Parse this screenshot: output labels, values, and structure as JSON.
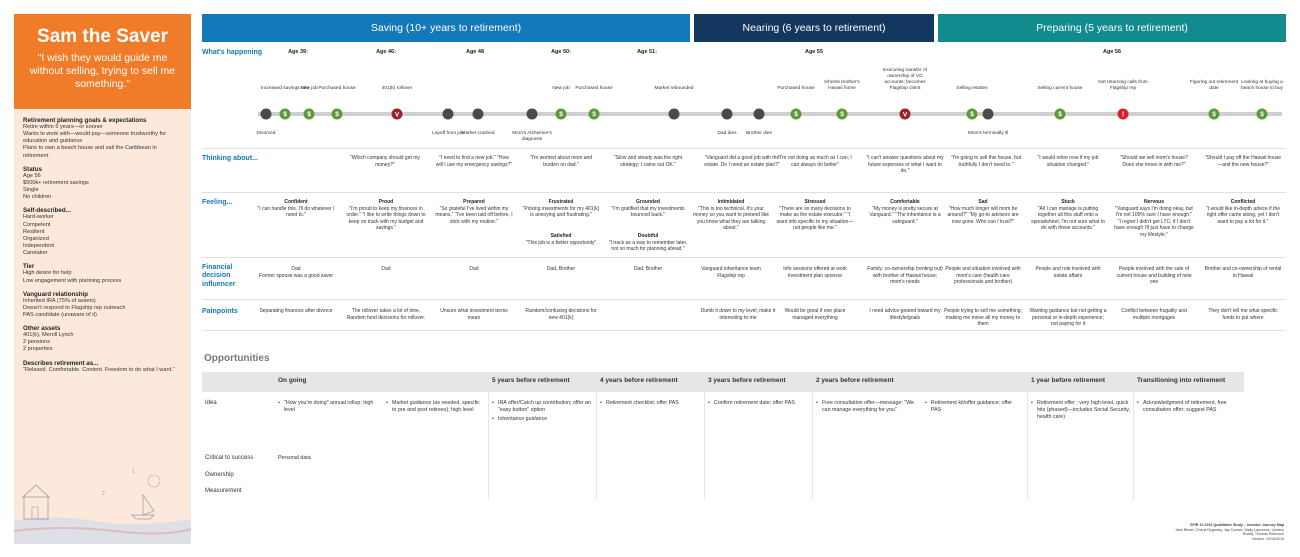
{
  "persona": {
    "name": "Sam the Saver",
    "quote": "\"I wish they would guide me without selling, trying to sell me something.\"",
    "sections": [
      {
        "title": "Retirement planning goals & expectations",
        "lines": [
          "Retire within 5 years—or sooner",
          "Wants to work with—would pay—someone trustworthy for education and guidance",
          "Plans to own a beach house and sail the Caribbean in retirement"
        ]
      },
      {
        "title": "Status",
        "lines": [
          "Age 56",
          "$500k+ retirement savings",
          "Single",
          "No children"
        ]
      },
      {
        "title": "Self-described...",
        "lines": [
          "Hard-worker",
          "Competent",
          "Resilient",
          "Organized",
          "Independent",
          "Caretaker"
        ]
      },
      {
        "title": "Tier",
        "lines": [
          "High desire for help",
          "Low engagement with planning process"
        ]
      },
      {
        "title": "Vanguard relationship",
        "lines": [
          "Inherited IRA (75% of assets)",
          "Doesn't respond to Flagship rep outreach",
          "PAS candidate (unaware of it)"
        ]
      },
      {
        "title": "Other assets",
        "lines": [
          "401(k), Merrill Lynch",
          "2 pensions",
          "2 properties"
        ]
      },
      {
        "title": "Describes retirement as...",
        "lines": [
          "\"Relaxed. Comfortable. Content. Freedom to do what I want.\""
        ]
      }
    ]
  },
  "phases": {
    "saving": "Saving (10+ years to retirement)",
    "nearing": "Nearing (6 years to retirement)",
    "preparing": "Preparing (5 years to retirement)"
  },
  "row_labels": {
    "happening": "What's happening",
    "thinking": "Thinking about...",
    "feeling": "Feeling...",
    "influencer": "Financial decision influencer",
    "painpoints": "Painpoints"
  },
  "ages": [
    {
      "label": "Age 39:"
    },
    {
      "label": "Age 46:"
    },
    {
      "label": "Age 48"
    },
    {
      "label": "Age 50:"
    },
    {
      "label": "Age 51:"
    },
    {
      "label": "Age 55"
    },
    {
      "label": "Age 56"
    }
  ],
  "events_top": [
    "Increased savings rate",
    "New job",
    "Purchased house",
    "401(k) rollover",
    "New job",
    "Purchased house",
    "Market rebounded",
    "Purchased house",
    "Inherits brother's Hawaii home",
    "Executing transfer of ownership of VG accounts; becomes Flagship client",
    "Selling estates",
    "Selling current house",
    "Not returning calls from Flagship rep",
    "Figuring out retirement date",
    "Looking at buying a beach house to buy"
  ],
  "events_bottom": [
    "Divorced",
    "Layoff from job",
    "Market crashed",
    "Mom's Alzheimer's diagnosis",
    "Dad dies",
    "Brother dies",
    "Mom's terminally ill"
  ],
  "thinking": [
    "\"Which company should get my money?\"",
    "\"I need to find a new job.\" \"How will I use my emergency savings?\"",
    "\"I'm worried about mom and burden on dad.\"",
    "\"Slow and steady was the right strategy; I came out OK.\"",
    "\"Vanguard did a good job with the estate. Do I need an estate plan?\"",
    "\"I'm not doing as much as I can; I can always do better\"",
    "\"I can't answer questions about my future expenses or what I want to do.\"",
    "\"I'm going to sell this house, but truthfully I don't need to.\"",
    "\"I would retire now if my job situation changed.\"",
    "\"Should we sell mom's house? Does she move in with me?\"",
    "\"Should I pay off the Hawaii house—and the new house?\""
  ],
  "feeling": [
    {
      "mood": "Confident",
      "text": "\"I can handle this. I'll do whatever I need to.\""
    },
    {
      "mood": "Proud",
      "text": "\"I'm proud to keep my finances in order.\" \"I like to write things down to keep on track with my budget and savings.\""
    },
    {
      "mood": "Prepared",
      "text": "\"So grateful I've lived within my means.\" \"I've been laid off before, I stick with my routine.\""
    },
    {
      "mood": "Frustrated",
      "text": "\"Picking investments for my 401(k) is annoying and frustrating.\""
    },
    {
      "mood": "Grounded",
      "text": "\"I'm gratified that my investments bounced back.\""
    },
    {
      "mood": "Satisfied",
      "text": "\"This job is a better opportunity\""
    },
    {
      "mood": "Doubtful",
      "text": "\"I track as a way to remember later, not so much for planning ahead.\""
    },
    {
      "mood": "Intimidated",
      "text": "\"This is too technical. It's your money so you want to pretend like you know what they are talking about.\""
    },
    {
      "mood": "Stressed",
      "text": "\"There are so many decisions to make as the estate executor.\" \"I want info specific to my situation—not people like me.\""
    },
    {
      "mood": "Comfortable",
      "text": "\"My money is pretty secure at Vanguard.\" \"The inheritance is a safeguard.\""
    },
    {
      "mood": "Sad",
      "text": "\"How much longer will mom be around?\" \"My go-to advisors are now gone. Who can I trust?\""
    },
    {
      "mood": "Stuck",
      "text": "\"All I can manage is putting together all this stuff onto a spreadsheet; I'm not sure what to do with these accounts.\""
    },
    {
      "mood": "Nervous",
      "text": "\"Vanguard says I'm doing okay, but I'm not 100% sure I have enough.\" \"I regret I didn't get LTC; if I don't have enough I'll just have to change my lifestyle.\""
    },
    {
      "mood": "Conflicted",
      "text": "\"I would like in-depth advice if the right offer came along, yet I don't want to pay a lot for it.\""
    }
  ],
  "influencer": [
    "Dad",
    "Former spouse was a good saver",
    "Dad",
    "Dad",
    "Dad, Brother",
    "Dad, Brother",
    "Vanguard inheritance team Flagship rep",
    "Info sessions offered at work Investment plan sponsor",
    "Family: co-ownership (renting out) with brother of Hawaii house; mom's needs",
    "People and situation involved with mom's care (health care professionals and brother)",
    "People and role involved with estate affairs",
    "People involved with the sale of current house and building of new one",
    "Brother and co-ownership of rental in Hawaii"
  ],
  "painpoints": [
    "Separating finances after divorce",
    "The rollover takes a lot of time. Random fund decisions for rollover.",
    "Unsure what investment terms mean",
    "Random/confusing decisions for new 401(k)",
    "Dumb it down to my level; make it interesting to me",
    "Would be great if one place managed everything",
    "I need advice geared toward my lifestyle/goals",
    "People trying to sell me something; making me move all my money to them",
    "Wanting guidance but not getting a personal or in-depth experience; not paying for it",
    "Conflict between frugality and multiple mortgages",
    "They don't tell me what specific funds to put where"
  ],
  "opportunities": {
    "title": "Opportunities",
    "columns": [
      "On going",
      "5 years before retirement",
      "4 years before retirement",
      "3 years before retirement",
      "2 years before retirement",
      "1 year before retirement",
      "Transitioning into retirement"
    ],
    "rows": [
      "Idea",
      "Critical to success",
      "Ownership",
      "Measurement"
    ],
    "ideas": {
      "ongoing_a": [
        "\"How you're doing\" annual rollup; high level"
      ],
      "ongoing_b": [
        "Market guidance (as needed, specific to pre and post retirees); high level"
      ],
      "five": [
        "IRA offer/Catch up contribution; offer an \"easy button\" option",
        "Inheritance guidance"
      ],
      "four": [
        "Retirement checklist; offer PAS"
      ],
      "three": [
        "Confirm retirement date; offer PAS"
      ],
      "two_a": [
        "Free consultation offer—message: \"We can manage everything for you\""
      ],
      "two_b": [
        "Retirement kit/offer guidance; offer PAS"
      ],
      "one": [
        "Retirement offer ; very high level, quick hits (phased)—includes Social Security, health care)"
      ],
      "transition": [
        "Acknowledgment of retirement, free consultation offer; suggest PAS"
      ]
    },
    "critical_value": "Personal data"
  },
  "footer": {
    "line1": "SPIR 10 2016 Qualitative Study – Investor Journey Map",
    "line2": "Jane Bilmer, Cheryl Rygorsky, Jay Conrad, Wally Lawrence, Lindsey Ruddy, Thomas Robinson",
    "line3": "Version: 10/16/2015"
  },
  "colors": {
    "saving": "#1479b8",
    "nearing": "#14375f",
    "preparing": "#128b8e",
    "persona": "#f07c2a"
  }
}
